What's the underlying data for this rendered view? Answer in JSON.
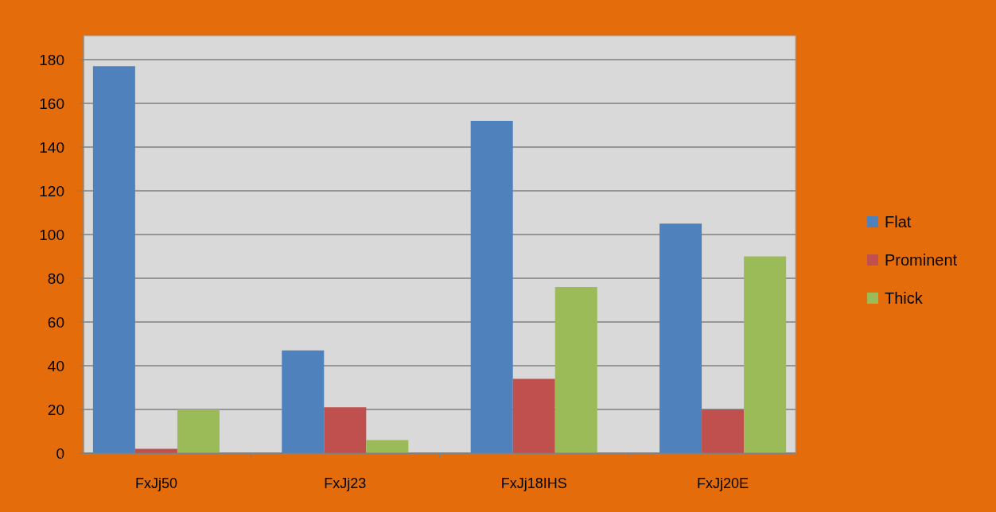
{
  "chart_data": {
    "type": "bar",
    "categories": [
      "FxJj50",
      "FxJj23",
      "FxJj18IHS",
      "FxJj20E"
    ],
    "series": [
      {
        "name": "Flat",
        "color": "#4f81bd",
        "values": [
          177,
          47,
          152,
          105
        ]
      },
      {
        "name": "Prominent",
        "color": "#c0504d",
        "values": [
          2,
          21,
          34,
          20
        ]
      },
      {
        "name": "Thick",
        "color": "#9bbb59",
        "values": [
          20,
          6,
          76,
          90
        ]
      }
    ],
    "ylim": [
      0,
      180
    ],
    "yticks": [
      0,
      20,
      40,
      60,
      80,
      100,
      120,
      140,
      160,
      180
    ],
    "grid": "y",
    "legend": "right"
  }
}
